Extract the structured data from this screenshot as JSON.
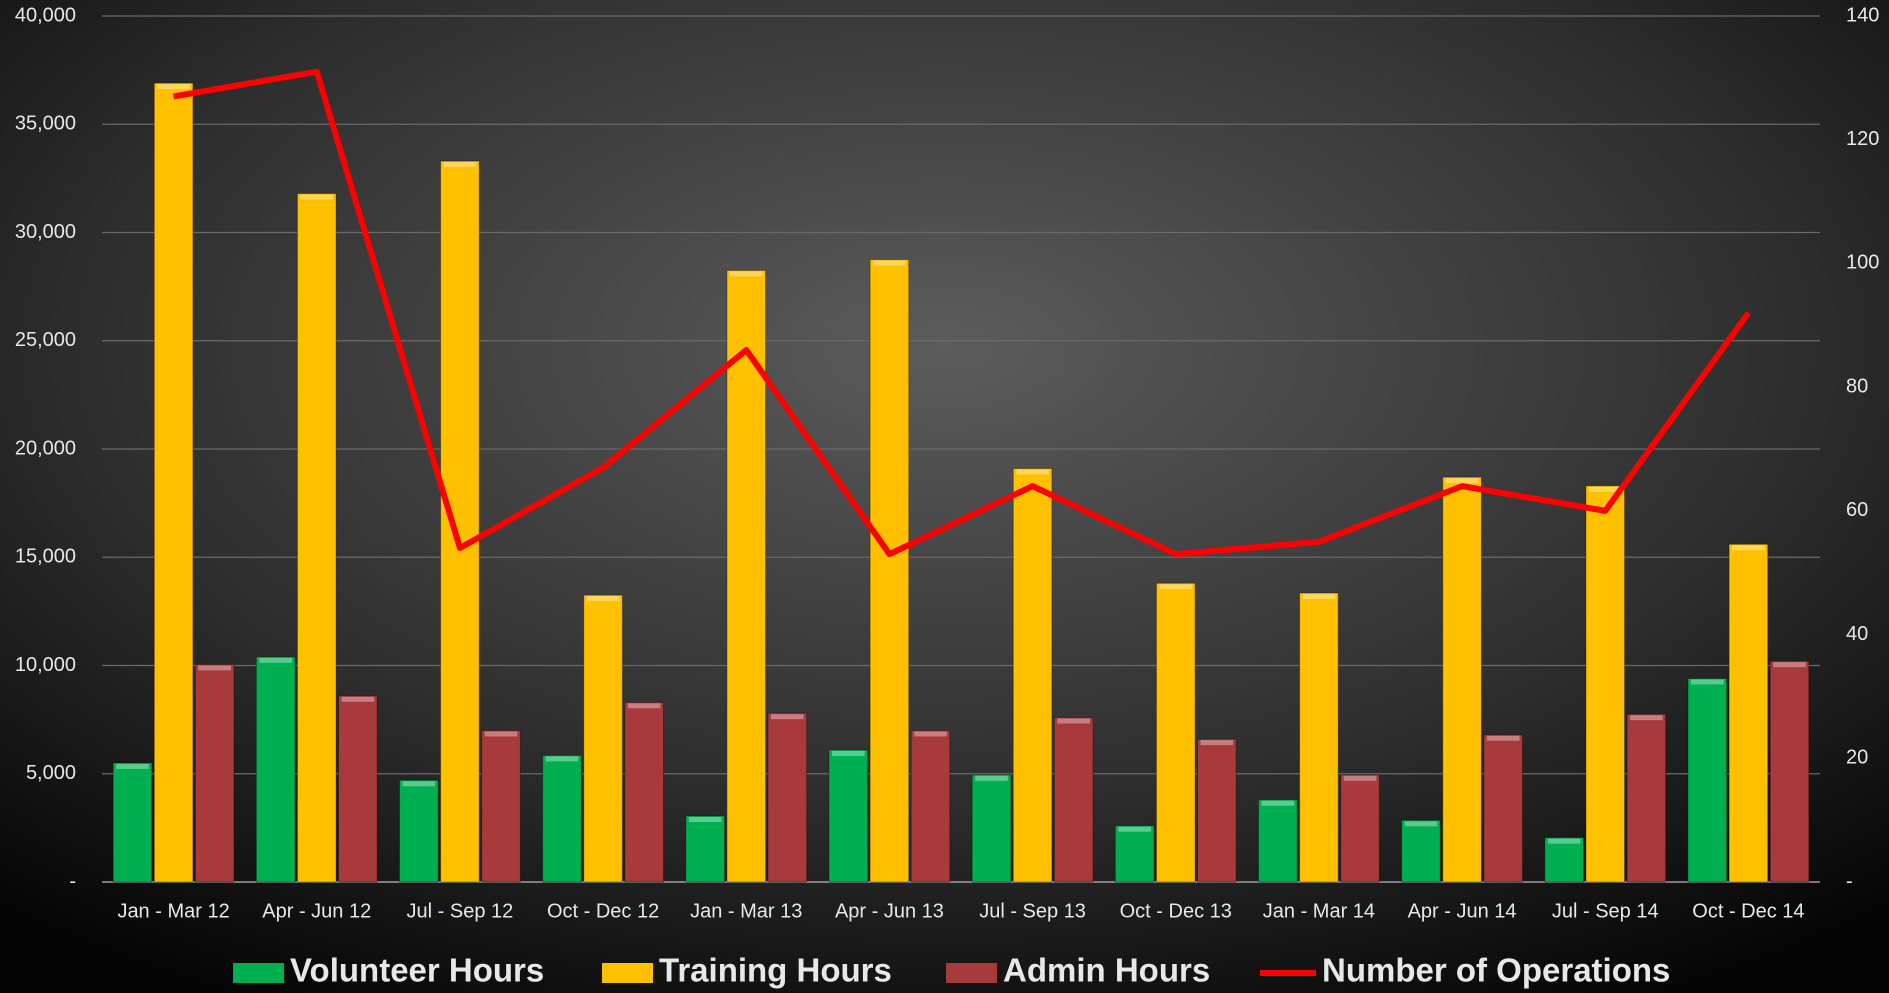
{
  "chart_data": {
    "type": "bar_line",
    "categories": [
      "Jan - Mar 12",
      "Apr - Jun 12",
      "Jul - Sep 12",
      "Oct - Dec 12",
      "Jan - Mar 13",
      "Apr - Jun 13",
      "Jul - Sep 13",
      "Oct - Dec 13",
      "Jan - Mar 14",
      "Apr - Jun 14",
      "Jul - Sep 14",
      "Oct - Dec 14"
    ],
    "series": [
      {
        "name": "Volunteer Hours",
        "type": "bar",
        "color": "#00b050",
        "values": [
          5500,
          10400,
          4700,
          5850,
          3050,
          6100,
          4950,
          2600,
          3800,
          2850,
          2050,
          9400
        ]
      },
      {
        "name": "Training Hours",
        "type": "bar",
        "color": "#ffc000",
        "values": [
          36900,
          31800,
          33300,
          13250,
          28250,
          28750,
          19100,
          13800,
          13350,
          18700,
          18300,
          15600
        ]
      },
      {
        "name": "Admin Hours",
        "type": "bar",
        "color": "#a83a3c",
        "values": [
          10050,
          8600,
          7000,
          8300,
          7800,
          7000,
          7600,
          6600,
          4950,
          6800,
          7750,
          10200
        ]
      },
      {
        "name": "Number of Operations",
        "type": "line",
        "axis": "y2",
        "color": "#ff0000",
        "values": [
          127,
          131,
          54,
          67,
          86,
          53,
          64,
          53,
          55,
          64,
          60,
          92
        ]
      }
    ],
    "ylim": [
      0,
      40000
    ],
    "yticks": [
      {
        "value": 0,
        "label": "-"
      },
      {
        "value": 5000,
        "label": "5,000"
      },
      {
        "value": 10000,
        "label": "10,000"
      },
      {
        "value": 15000,
        "label": "15,000"
      },
      {
        "value": 20000,
        "label": "20,000"
      },
      {
        "value": 25000,
        "label": "25,000"
      },
      {
        "value": 30000,
        "label": "30,000"
      },
      {
        "value": 35000,
        "label": "35,000"
      },
      {
        "value": 40000,
        "label": "40,000"
      }
    ],
    "y2lim": [
      0,
      140
    ],
    "y2ticks": [
      {
        "value": 0,
        "label": "-"
      },
      20,
      40,
      60,
      80,
      100,
      120,
      140
    ],
    "grid": true,
    "legend": "bottom"
  }
}
